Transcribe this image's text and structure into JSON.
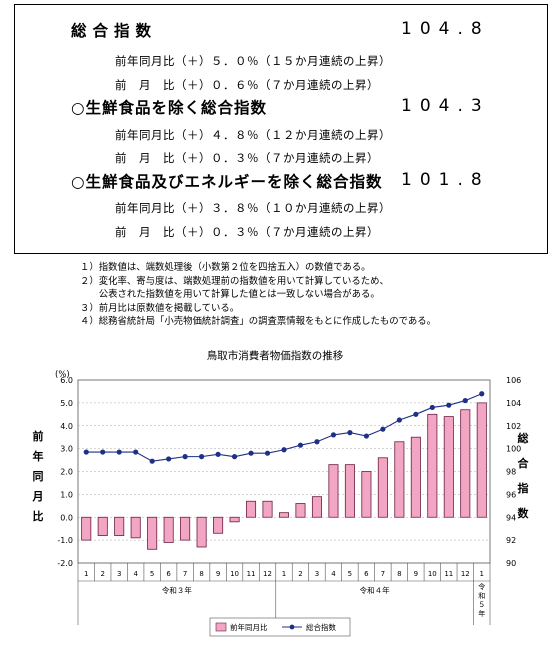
{
  "summary": {
    "items": [
      {
        "title": "総合指数",
        "value": "104.8",
        "yoy": "前年同月比（＋）５．０％（１５か月連続の上昇）",
        "mom": "前　月　比（＋）０．６％（７か月連続の上昇）"
      },
      {
        "title": "○生鮮食品を除く総合指数",
        "value": "104.3",
        "yoy": "前年同月比（＋）４．８％（１２か月連続の上昇）",
        "mom": "前　月　比（＋）０．３％（７か月連続の上昇）"
      },
      {
        "title": "○生鮮食品及びエネルギーを除く総合指数",
        "value": "101.8",
        "yoy": "前年同月比（＋）３．８％（１０か月連続の上昇）",
        "mom": "前　月　比（＋）０．３％（７か月連続の上昇）"
      }
    ]
  },
  "notes": [
    "１）指数値は、端数処理後（小数第２位を四捨五入）の数値である。",
    "２）変化率、寄与度は、端数処理前の指数値を用いて計算しているため、",
    "　　公表された指数値を用いて計算した値とは一致しない場合がある。",
    "３）前月比は原数値を掲載している。",
    "４）総務省統計局「小売物価統計調査」の調査票情報をもとに作成したものである。"
  ],
  "chart_data": {
    "type": "bar",
    "title": "鳥取市消費者物価指数の推移",
    "categories": [
      "1",
      "2",
      "3",
      "4",
      "5",
      "6",
      "7",
      "8",
      "9",
      "10",
      "11",
      "12",
      "1",
      "2",
      "3",
      "4",
      "5",
      "6",
      "7",
      "8",
      "9",
      "10",
      "11",
      "12",
      "1"
    ],
    "year_groups": [
      {
        "label": "令和３年",
        "start": 0,
        "end": 11
      },
      {
        "label": "令和４年",
        "start": 12,
        "end": 23
      },
      {
        "label": "令和５年",
        "start": 24,
        "end": 24
      }
    ],
    "ylabel_left": "前年同月比",
    "ylabel_left_unit": "(%)",
    "ylabel_right": "総合指数",
    "ylim_left": [
      -2.0,
      6.0
    ],
    "yticks_left": [
      "6.0",
      "5.0",
      "4.0",
      "3.0",
      "2.0",
      "1.0",
      "0.0",
      "-1.0",
      "-2.0"
    ],
    "ylim_right": [
      90,
      106
    ],
    "yticks_right": [
      "106",
      "104",
      "102",
      "100",
      "98",
      "96",
      "94",
      "92",
      "90"
    ],
    "legend_position": "bottom",
    "series": [
      {
        "name": "前年同月比",
        "kind": "bar",
        "axis": "left",
        "color": "#f2a6c4",
        "values": [
          -1.0,
          -0.8,
          -0.8,
          -0.9,
          -1.4,
          -1.1,
          -1.0,
          -1.3,
          -0.7,
          -0.2,
          0.7,
          0.7,
          0.2,
          0.6,
          0.9,
          2.3,
          2.3,
          2.0,
          2.6,
          3.3,
          3.5,
          4.5,
          4.4,
          4.7,
          5.0
        ]
      },
      {
        "name": "総合指数",
        "kind": "line",
        "axis": "right",
        "color": "#1f2f86",
        "values": [
          99.7,
          99.7,
          99.7,
          99.7,
          98.9,
          99.1,
          99.3,
          99.3,
          99.5,
          99.3,
          99.6,
          99.6,
          99.9,
          100.3,
          100.6,
          101.2,
          101.4,
          101.1,
          101.7,
          102.5,
          103.0,
          103.6,
          103.8,
          104.2,
          104.8
        ]
      }
    ]
  }
}
